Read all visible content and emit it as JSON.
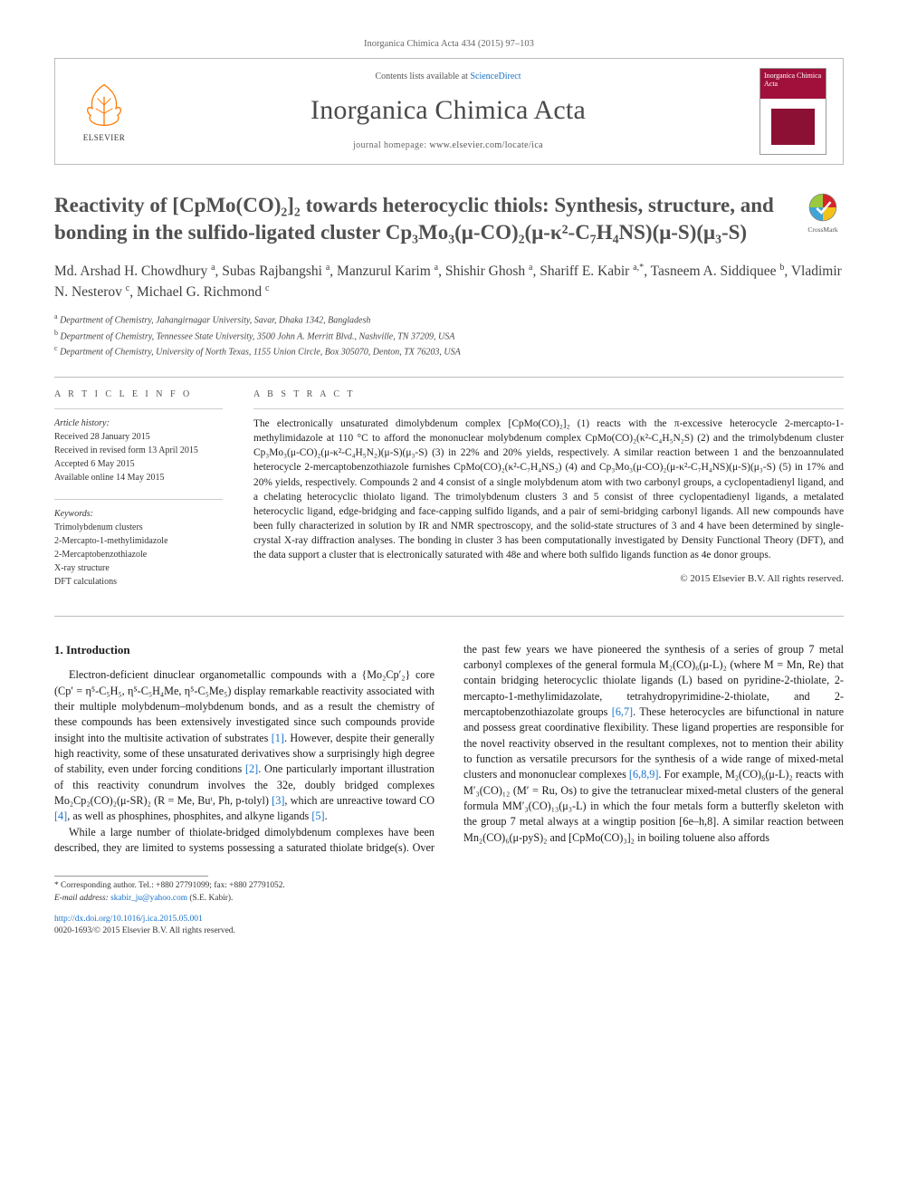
{
  "banner": "Inorganica Chimica Acta 434 (2015) 97–103",
  "header": {
    "contents_prefix": "Contents lists available at ",
    "contents_link": "ScienceDirect",
    "journal_name": "Inorganica Chimica Acta",
    "homepage_prefix": "journal homepage: ",
    "homepage_url": "www.elsevier.com/locate/ica",
    "publisher_word": "ELSEVIER",
    "cover_title": "Inorganica Chimica Acta"
  },
  "crossmark_label": "CrossMark",
  "title": "Reactivity of [CpMo(CO)₂]₂ towards heterocyclic thiols: Synthesis, structure, and bonding in the sulfido-ligated cluster Cp₃Mo₃(μ-CO)₂(μ-κ²-C₇H₄NS)(μ-S)(μ₃-S)",
  "authors_html": "Md. Arshad H. Chowdhury <sup>a</sup>, Subas Rajbangshi <sup>a</sup>, Manzurul Karim <sup>a</sup>, Shishir Ghosh <sup>a</sup>, Shariff E. Kabir <sup>a,*</sup>, Tasneem A. Siddiquee <sup>b</sup>, Vladimir N. Nesterov <sup>c</sup>, Michael G. Richmond <sup>c</sup>",
  "affiliations": [
    "Department of Chemistry, Jahangirnagar University, Savar, Dhaka 1342, Bangladesh",
    "Department of Chemistry, Tennessee State University, 3500 John A. Merritt Blvd., Nashville, TN 37209, USA",
    "Department of Chemistry, University of North Texas, 1155 Union Circle, Box 305070, Denton, TX 76203, USA"
  ],
  "article_info_label": "A R T I C L E   I N F O",
  "abstract_label": "A B S T R A C T",
  "history_label": "Article history:",
  "history": [
    "Received 28 January 2015",
    "Received in revised form 13 April 2015",
    "Accepted 6 May 2015",
    "Available online 14 May 2015"
  ],
  "keywords_label": "Keywords:",
  "keywords": [
    "Trimolybdenum clusters",
    "2-Mercapto-1-methylimidazole",
    "2-Mercaptobenzothiazole",
    "X-ray structure",
    "DFT calculations"
  ],
  "abstract": "The electronically unsaturated dimolybdenum complex [CpMo(CO)₂]₂ (1) reacts with the π-excessive heterocycle 2-mercapto-1-methylimidazole at 110 °C to afford the mononuclear molybdenum complex CpMo(CO)₂(κ²-C₄H₅N₂S) (2) and the trimolybdenum cluster Cp₃Mo₃(μ-CO)₂(μ-κ²-C₄H₅N₂)(μ-S)(μ₃-S) (3) in 22% and 20% yields, respectively. A similar reaction between 1 and the benzoannulated heterocycle 2-mercaptobenzothiazole furnishes CpMo(CO)₂(κ²-C₇H₄NS₂) (4) and Cp₃Mo₃(μ-CO)₂(μ-κ²-C₇H₄NS)(μ-S)(μ₃-S) (5) in 17% and 20% yields, respectively. Compounds 2 and 4 consist of a single molybdenum atom with two carbonyl groups, a cyclopentadienyl ligand, and a chelating heterocyclic thiolato ligand. The trimolybdenum clusters 3 and 5 consist of three cyclopentadienyl ligands, a metalated heterocyclic ligand, edge-bridging and face-capping sulfido ligands, and a pair of semi-bridging carbonyl ligands. All new compounds have been fully characterized in solution by IR and NMR spectroscopy, and the solid-state structures of 3 and 4 have been determined by single-crystal X-ray diffraction analyses. The bonding in cluster 3 has been computationally investigated by Density Functional Theory (DFT), and the data support a cluster that is electronically saturated with 48e and where both sulfido ligands function as 4e donor groups.",
  "copyright": "© 2015 Elsevier B.V. All rights reserved.",
  "section1_heading": "1. Introduction",
  "para1": "Electron-deficient dinuclear organometallic compounds with a {Mo₂Cp′₂} core (Cp′ = η⁵-C₅H₅, η⁵-C₅H₄Me, η⁵-C₅Me₅) display remarkable reactivity associated with their multiple molybdenum–molybdenum bonds, and as a result the chemistry of these compounds has been extensively investigated since such compounds provide insight into the multisite activation of substrates [1]. However, despite their generally high reactivity, some of these unsaturated derivatives show a surprisingly high degree of stability, even under forcing conditions [2]. One particularly important illustration of this reactivity conundrum involves the 32e, doubly bridged complexes Mo₂Cp₂(CO)₂(μ-SR)₂ (R = Me, Buᵗ, Ph, p-tolyl) [3], which are unreactive toward CO [4], as well as phosphines, phosphites, and alkyne ligands [5].",
  "para2": "While a large number of thiolate-bridged dimolybdenum complexes have been described, they are limited to systems possessing a saturated thiolate bridge(s). Over the past few years we have pioneered the synthesis of a series of group 7 metal carbonyl complexes of the general formula M₂(CO)₆(μ-L)₂ (where M = Mn, Re) that contain bridging heterocyclic thiolate ligands (L) based on pyridine-2-thiolate, 2-mercapto-1-methylimidazolate, tetrahydropyrimidine-2-thiolate, and 2-mercaptobenzothiazolate groups [6,7]. These heterocycles are bifunctional in nature and possess great coordinative flexibility. These ligand properties are responsible for the novel reactivity observed in the resultant complexes, not to mention their ability to function as versatile precursors for the synthesis of a wide range of mixed-metal clusters and mononuclear complexes [6,8,9]. For example, M₂(CO)₆(μ-L)₂ reacts with M′₃(CO)₁₂ (M′ = Ru, Os) to give the tetranuclear mixed-metal clusters of the general formula MM′₃(CO)₁₃(μ₃-L) in which the four metals form a butterfly skeleton with the group 7 metal always at a wingtip position [6e–h,8]. A similar reaction between Mn₂(CO)₆(μ-pyS)₂ and [CpMo(CO)₃]₂ in boiling toluene also affords",
  "corr_line": "* Corresponding author. Tel.: +880 27791099; fax: +880 27791052.",
  "email_label": "E-mail address: ",
  "email": "skabir_ju@yahoo.com",
  "email_tail": " (S.E. Kabir).",
  "doi_url": "http://dx.doi.org/10.1016/j.ica.2015.05.001",
  "issn_line": "0020-1693/© 2015 Elsevier B.V. All rights reserved.",
  "refs": {
    "r1": "[1]",
    "r2": "[2]",
    "r3": "[3]",
    "r4": "[4]",
    "r5": "[5]",
    "r67": "[6,7]",
    "r689": "[6,8,9]"
  },
  "colors": {
    "link": "#1771c9",
    "elsevier_orange": "#fe7900",
    "journal_red": "#a0103b",
    "rule": "#bcbcbc"
  }
}
